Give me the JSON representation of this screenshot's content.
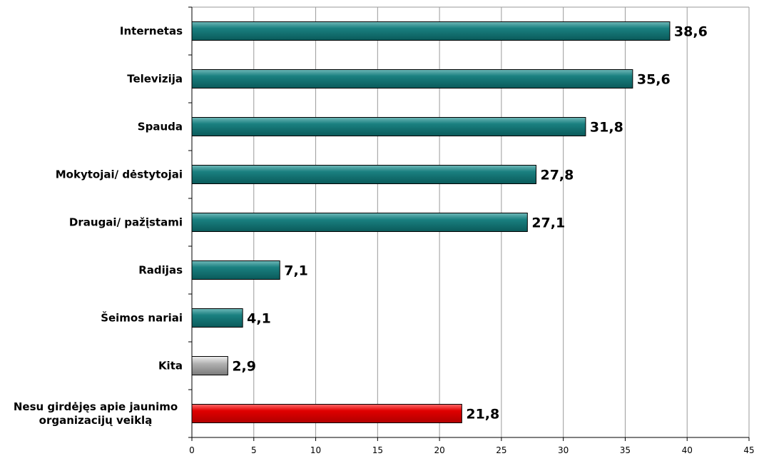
{
  "chart_data": {
    "type": "bar",
    "orientation": "horizontal",
    "categories": [
      "Internetas",
      "Televizija",
      "Spauda",
      "Mokytojai/ dėstytojai",
      "Draugai/ pažįstami",
      "Radijas",
      "Šeimos nariai",
      "Kita",
      "Nesu girdėjęs apie jaunimo organizacijų veiklą"
    ],
    "category_lines": [
      [
        "Internetas"
      ],
      [
        "Televizija"
      ],
      [
        "Spauda"
      ],
      [
        "Mokytojai/ dėstytojai"
      ],
      [
        "Draugai/ pažįstami"
      ],
      [
        "Radijas"
      ],
      [
        "Šeimos nariai"
      ],
      [
        "Kita"
      ],
      [
        "Nesu girdėjęs apie jaunimo",
        "organizacijų veiklą"
      ]
    ],
    "values": [
      38.6,
      35.6,
      31.8,
      27.8,
      27.1,
      7.1,
      4.1,
      2.9,
      21.8
    ],
    "value_labels": [
      "38,6",
      "35,6",
      "31,8",
      "27,8",
      "27,1",
      "7,1",
      "4,1",
      "2,9",
      "21,8"
    ],
    "bar_colors": [
      "#0e6f6f",
      "#0e6f6f",
      "#0e6f6f",
      "#0e6f6f",
      "#0e6f6f",
      "#0e6f6f",
      "#0e6f6f",
      "#a8a8a8",
      "#dd0000"
    ],
    "xlim": [
      0,
      45
    ],
    "xticks": [
      0,
      5,
      10,
      15,
      20,
      25,
      30,
      35,
      40,
      45
    ],
    "grid": true,
    "legend": "none",
    "title": "",
    "xlabel": "",
    "ylabel": ""
  }
}
